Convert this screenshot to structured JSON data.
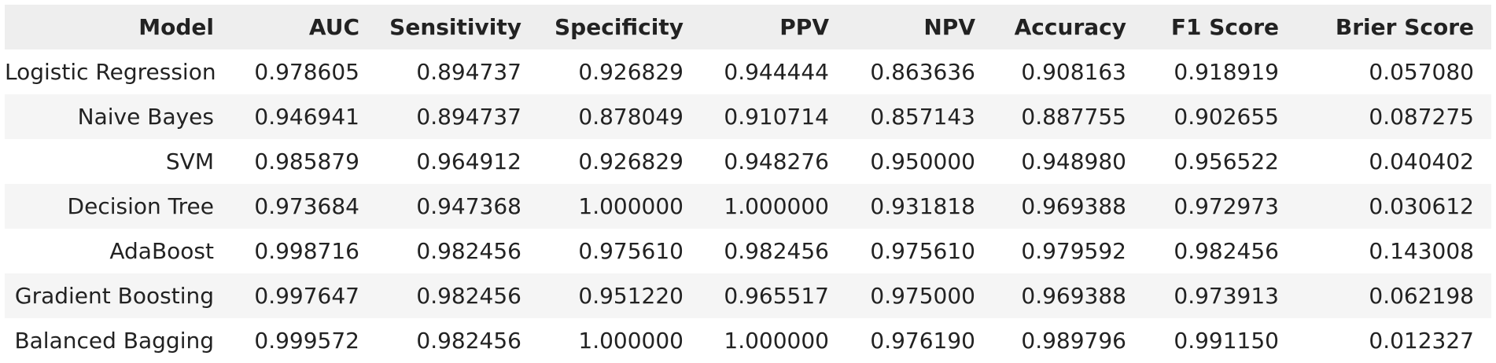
{
  "columns": [
    "Model",
    "AUC",
    "Sensitivity",
    "Specificity",
    "PPV",
    "NPV",
    "Accuracy",
    "F1 Score",
    "Brier Score"
  ],
  "rows": [
    [
      "Logistic Regression",
      "0.978605",
      "0.894737",
      "0.926829",
      "0.944444",
      "0.863636",
      "0.908163",
      "0.918919",
      "0.057080"
    ],
    [
      "Naive Bayes",
      "0.946941",
      "0.894737",
      "0.878049",
      "0.910714",
      "0.857143",
      "0.887755",
      "0.902655",
      "0.087275"
    ],
    [
      "SVM",
      "0.985879",
      "0.964912",
      "0.926829",
      "0.948276",
      "0.950000",
      "0.948980",
      "0.956522",
      "0.040402"
    ],
    [
      "Decision Tree",
      "0.973684",
      "0.947368",
      "1.000000",
      "1.000000",
      "0.931818",
      "0.969388",
      "0.972973",
      "0.030612"
    ],
    [
      "AdaBoost",
      "0.998716",
      "0.982456",
      "0.975610",
      "0.982456",
      "0.975610",
      "0.979592",
      "0.982456",
      "0.143008"
    ],
    [
      "Gradient Boosting",
      "0.997647",
      "0.982456",
      "0.951220",
      "0.965517",
      "0.975000",
      "0.969388",
      "0.973913",
      "0.062198"
    ],
    [
      "Balanced Bagging",
      "0.999572",
      "0.982456",
      "1.000000",
      "1.000000",
      "0.976190",
      "0.989796",
      "0.991150",
      "0.012327"
    ]
  ],
  "colors": {
    "header_bg": "#eeeeee",
    "row_alt_bg": "#f5f5f5",
    "row_bg": "#ffffff",
    "text": "#222222"
  }
}
